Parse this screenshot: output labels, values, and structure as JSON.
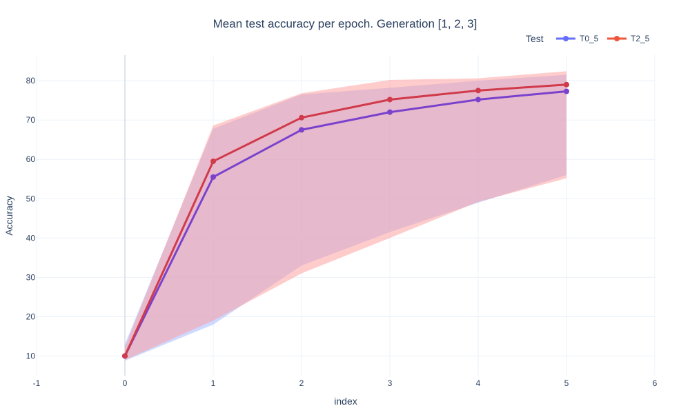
{
  "chart_data": {
    "type": "line",
    "title": "Mean test accuracy per epoch. Generation [1, 2, 3]",
    "xlabel": "index",
    "ylabel": "Accuracy",
    "xlim": [
      -1,
      6
    ],
    "ylim": [
      5,
      86.5
    ],
    "x_ticks": [
      -1,
      0,
      1,
      2,
      3,
      4,
      5,
      6
    ],
    "y_ticks": [
      10,
      20,
      30,
      40,
      50,
      60,
      70,
      80
    ],
    "grid": true,
    "legend": {
      "title": "Test",
      "placement": "top-right",
      "orientation": "horizontal"
    },
    "x": [
      0,
      1,
      2,
      3,
      4,
      5
    ],
    "series": [
      {
        "name": "T0_5",
        "color": "#636efa",
        "line_color": "#7a42cc",
        "band_color": "#a0b4ff",
        "values": [
          10,
          55.5,
          67.5,
          72,
          75.2,
          77.3
        ],
        "upper": [
          13,
          67.8,
          76.5,
          78.2,
          80,
          81.5
        ],
        "lower": [
          8.8,
          18,
          33,
          41.5,
          49,
          56
        ]
      },
      {
        "name": "T2_5",
        "color": "#EF553B",
        "line_color": "#d03a4a",
        "band_color": "#ff9a9a",
        "values": [
          10,
          59.5,
          70.6,
          75.2,
          77.5,
          79
        ],
        "upper": [
          12.2,
          68.6,
          76.8,
          80.2,
          80.6,
          82.4
        ],
        "lower": [
          9,
          19,
          31,
          40,
          49.2,
          55.2
        ]
      }
    ]
  }
}
